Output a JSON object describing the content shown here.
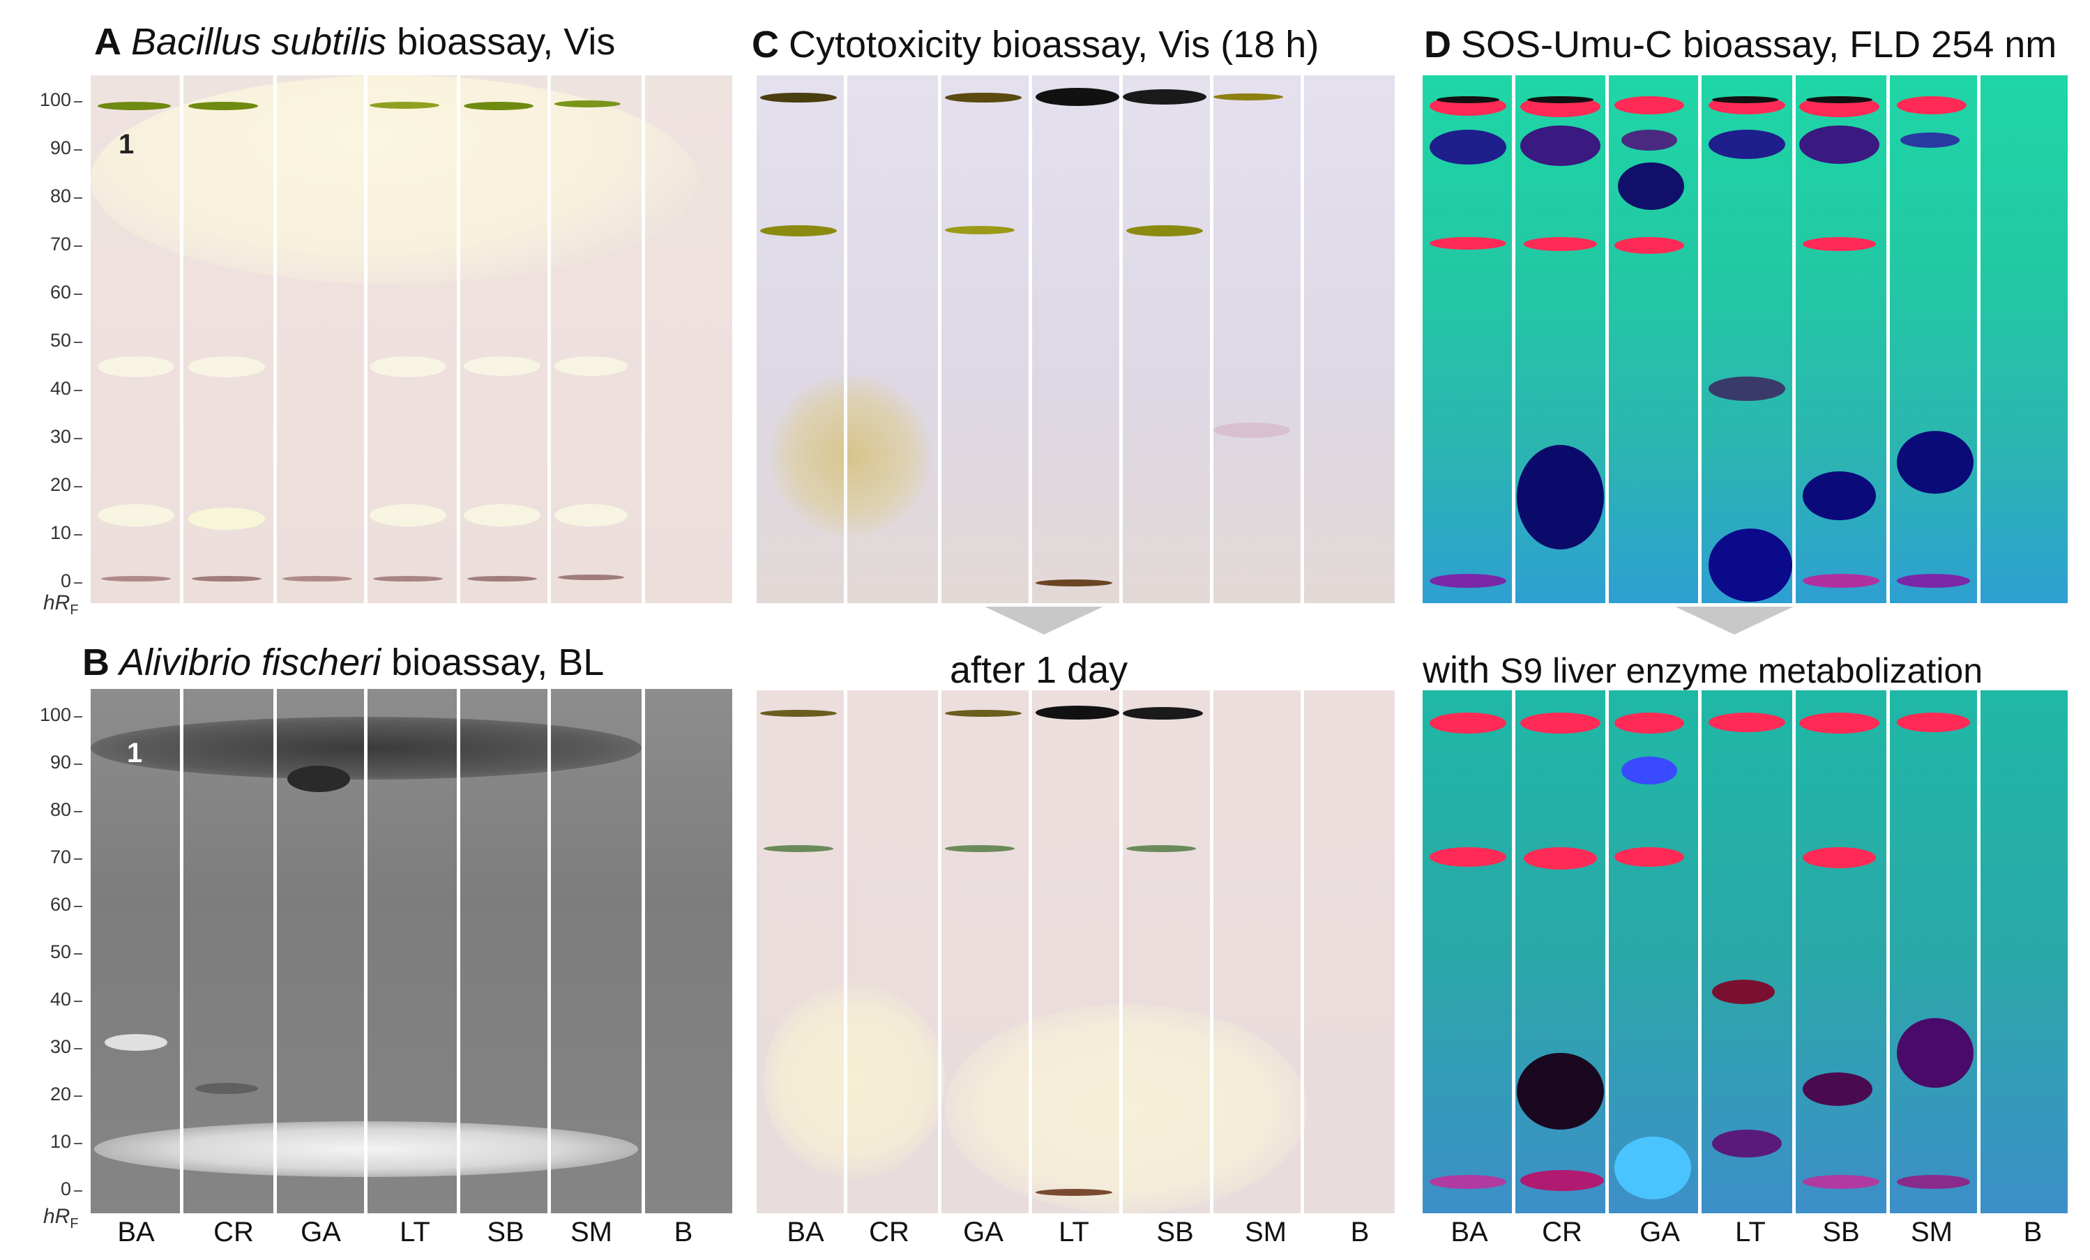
{
  "panels": {
    "A": {
      "letter": "A",
      "species": "Bacillus subtilis",
      "rest": "bioassay, Vis"
    },
    "B": {
      "letter": "B",
      "species": "Alivibrio fischeri",
      "rest": "bioassay, BL"
    },
    "C": {
      "letter": "C",
      "text": "Cytotoxicity bioassay, Vis (18 h)",
      "sub": "after 1 day"
    },
    "D": {
      "letter": "D",
      "text": "SOS-Umu-C bioassay, FLD 254 nm",
      "sub_prefix": "with",
      "sub_rest": "S9 liver enzyme metabolization"
    }
  },
  "axis": {
    "ticks": [
      "100",
      "90",
      "80",
      "70",
      "60",
      "50",
      "40",
      "30",
      "20",
      "10",
      "0"
    ],
    "unit_main": "hR",
    "unit_sub": "F"
  },
  "lanes": [
    "BA",
    "CR",
    "GA",
    "LT",
    "SB",
    "SM",
    "B"
  ],
  "annotations": {
    "A": "1",
    "B": "1"
  },
  "colors": {
    "plate_A": "#ecdedb",
    "plate_B": "#858585",
    "plate_C": "#e2dae6",
    "plate_D": "#22c9a4",
    "band_red": "#ff2a55",
    "band_blue": "#14148c",
    "band_yellow": "#9a9a10"
  }
}
